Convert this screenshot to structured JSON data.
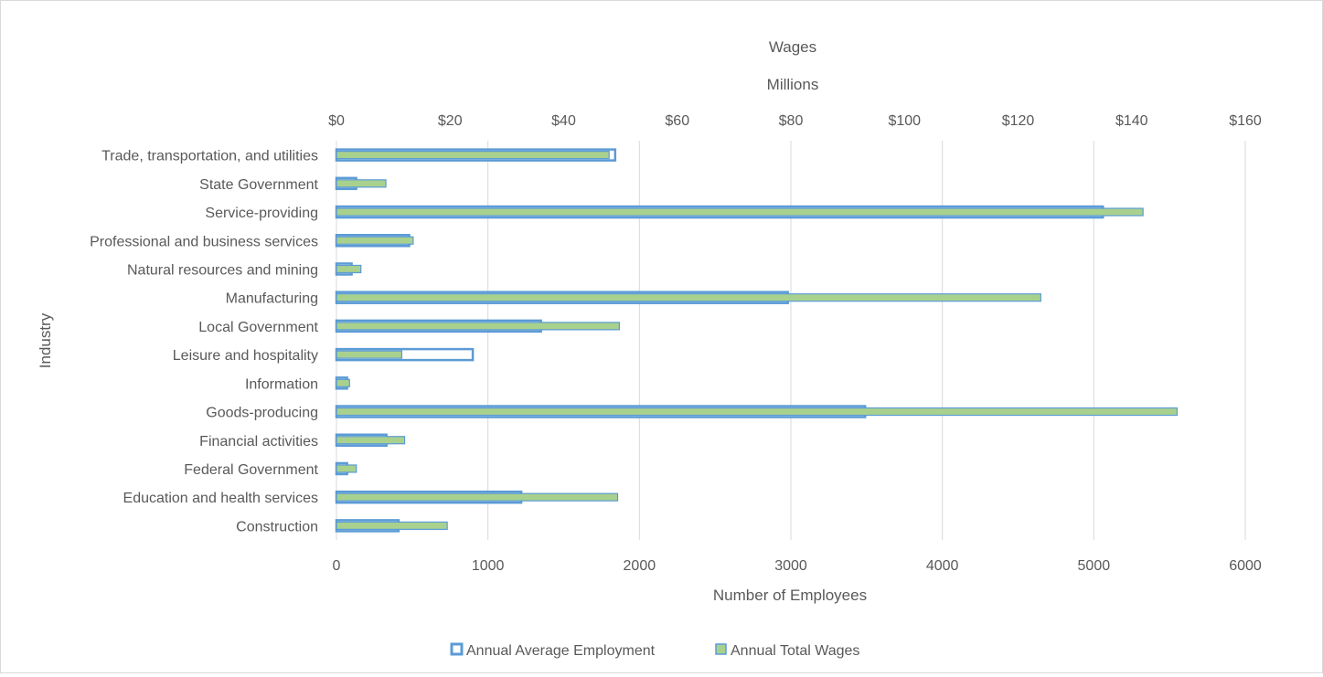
{
  "chart_data": {
    "type": "bar",
    "orientation": "horizontal",
    "categories": [
      "Trade, transportation, and utilities",
      "State Government",
      "Service-providing",
      "Professional and business services",
      "Natural resources and mining",
      "Manufacturing",
      "Local Government",
      "Leisure and hospitality",
      "Information",
      "Goods-producing",
      "Financial activities",
      "Federal Government",
      "Education and health services",
      "Construction"
    ],
    "series": [
      {
        "name": "Annual Average Employment",
        "axis": "bottom",
        "values": [
          1840,
          130,
          5060,
          480,
          100,
          2980,
          1350,
          900,
          70,
          3490,
          330,
          70,
          1220,
          410
        ],
        "fill": "#ffffff",
        "stroke": "#5b9bd5"
      },
      {
        "name": "Annual Total Wages",
        "axis": "top",
        "values": [
          48.0,
          8.7,
          142.0,
          13.5,
          4.3,
          124.0,
          49.8,
          11.5,
          2.3,
          148.0,
          12.0,
          3.5,
          49.5,
          19.5
        ],
        "fill": "#a9d18e",
        "stroke": "#5b9bd5"
      }
    ],
    "x_axis_bottom": {
      "label": "Number of Employees",
      "range": [
        0,
        6000
      ],
      "ticks": [
        "0",
        "1000",
        "2000",
        "3000",
        "4000",
        "5000",
        "6000"
      ]
    },
    "x_axis_top": {
      "label": "Wages",
      "unit_label": "Millions",
      "range": [
        0,
        160
      ],
      "ticks": [
        "$0",
        "$20",
        "$40",
        "$60",
        "$80",
        "$100",
        "$120",
        "$140",
        "$160"
      ]
    },
    "y_axis": {
      "label": "Industry"
    },
    "grid": "vertical",
    "legend": "bottom",
    "colors": {
      "gridline": "#d9d9d9",
      "text": "#595959",
      "border": "#5b9bd5",
      "wages_fill": "#a9d18e"
    }
  }
}
